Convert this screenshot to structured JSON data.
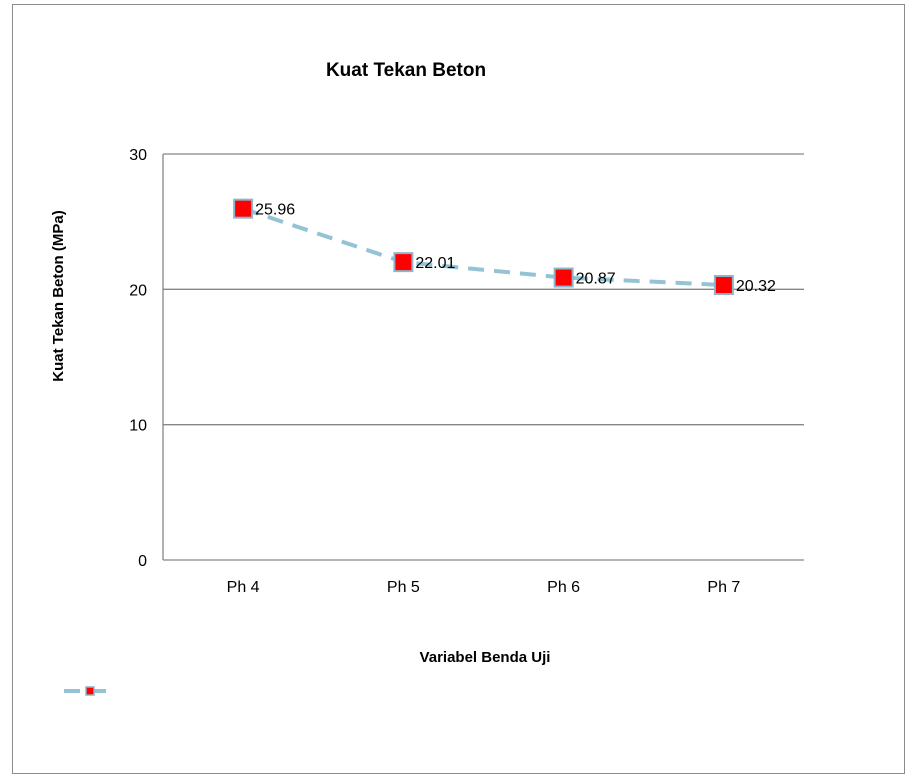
{
  "chart_data": {
    "type": "line",
    "title": "Kuat Tekan Beton",
    "xlabel": "Variabel Benda Uji",
    "ylabel": "Kuat Tekan Beton (MPa)",
    "categories": [
      "Ph 4",
      "Ph 5",
      "Ph 6",
      "Ph 7"
    ],
    "series": [
      {
        "values": [
          25.96,
          22.01,
          20.87,
          20.32
        ],
        "data_labels": [
          "25.96",
          "22.01",
          "20.87",
          "20.32"
        ],
        "line_color": "#93c3d4",
        "line_style": "dashed",
        "marker": "square",
        "marker_fill": "#ff0000",
        "marker_border": "#8fb4cc"
      }
    ],
    "ylim": [
      0,
      30
    ],
    "yticks": [
      0,
      10,
      20,
      30
    ],
    "grid": true,
    "legend": "bottom-left"
  }
}
